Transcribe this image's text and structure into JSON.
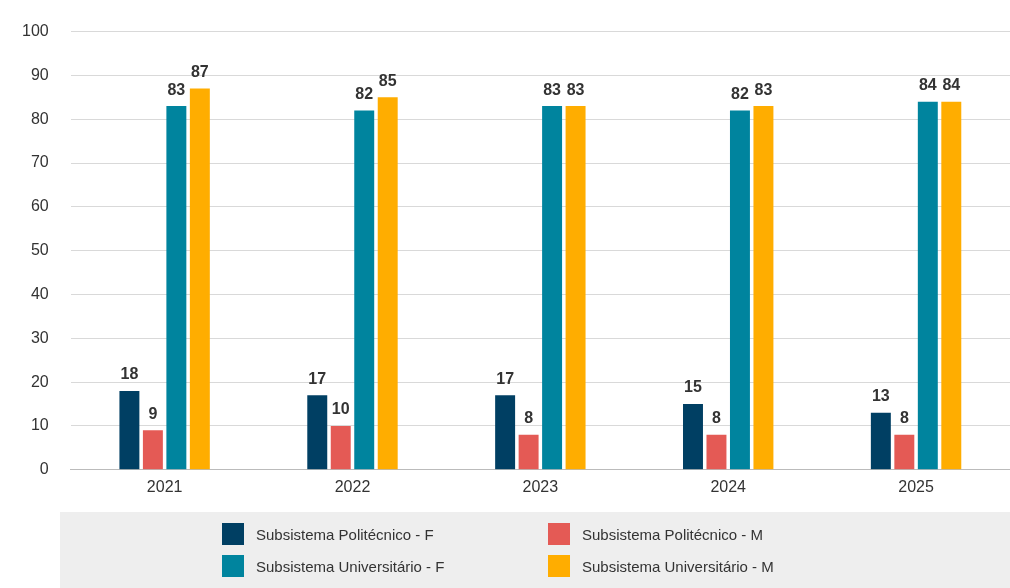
{
  "chart_data": {
    "type": "bar",
    "categories": [
      "2021",
      "2022",
      "2023",
      "2024",
      "2025"
    ],
    "series": [
      {
        "name": "Subsistema Politécnico - F",
        "color": "#003f63",
        "values": [
          18,
          17,
          17,
          15,
          13
        ]
      },
      {
        "name": "Subsistema Politécnico - M",
        "color": "#e45a55",
        "values": [
          9,
          10,
          8,
          8,
          8
        ]
      },
      {
        "name": "Subsistema Universitário - F",
        "color": "#00849e",
        "values": [
          83,
          82,
          83,
          82,
          84
        ]
      },
      {
        "name": "Subsistema Universitário - M",
        "color": "#ffad00",
        "values": [
          87,
          85,
          83,
          83,
          84
        ]
      }
    ],
    "ylim": [
      0,
      100
    ],
    "yticks": [
      0,
      10,
      20,
      30,
      40,
      50,
      60,
      70,
      80,
      90,
      100
    ],
    "grid": "y",
    "legend": "bottom",
    "data_labels": true
  }
}
